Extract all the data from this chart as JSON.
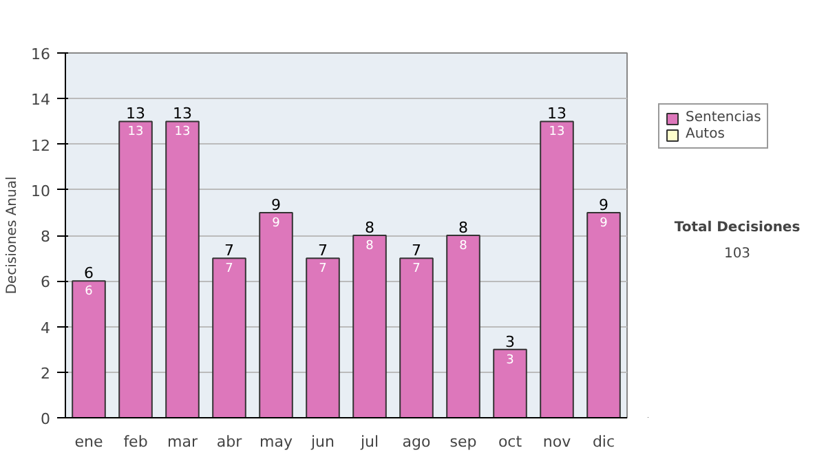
{
  "chart_data": {
    "type": "bar",
    "stacked": true,
    "ylabel": "Decisiones Anual",
    "categories": [
      "ene",
      "feb",
      "mar",
      "abr",
      "may",
      "jun",
      "jul",
      "ago",
      "sep",
      "oct",
      "nov",
      "dic"
    ],
    "series": [
      {
        "name": "Sentencias",
        "color": "#dd77bb",
        "values": [
          6,
          13,
          13,
          7,
          9,
          7,
          8,
          7,
          8,
          3,
          13,
          9
        ],
        "value_labels": [
          "6",
          "13",
          "13",
          "7",
          "9",
          "7",
          "8",
          "7",
          "8",
          "3",
          "13",
          "9"
        ]
      },
      {
        "name": "Autos",
        "color": "#ffffcc",
        "values": [
          0,
          0,
          0,
          0,
          0,
          0,
          0,
          0,
          0,
          0,
          0,
          0
        ]
      }
    ],
    "totals": [
      "6",
      "13",
      "13",
      "7",
      "9",
      "7",
      "8",
      "7",
      "8",
      "3",
      "13",
      "9"
    ],
    "ylim": [
      0,
      16
    ],
    "yticks": [
      0,
      2,
      4,
      6,
      8,
      10,
      12,
      14,
      16
    ],
    "grid": "y",
    "legend": "right",
    "annotations": [
      "Total Decisiones",
      "103"
    ]
  }
}
